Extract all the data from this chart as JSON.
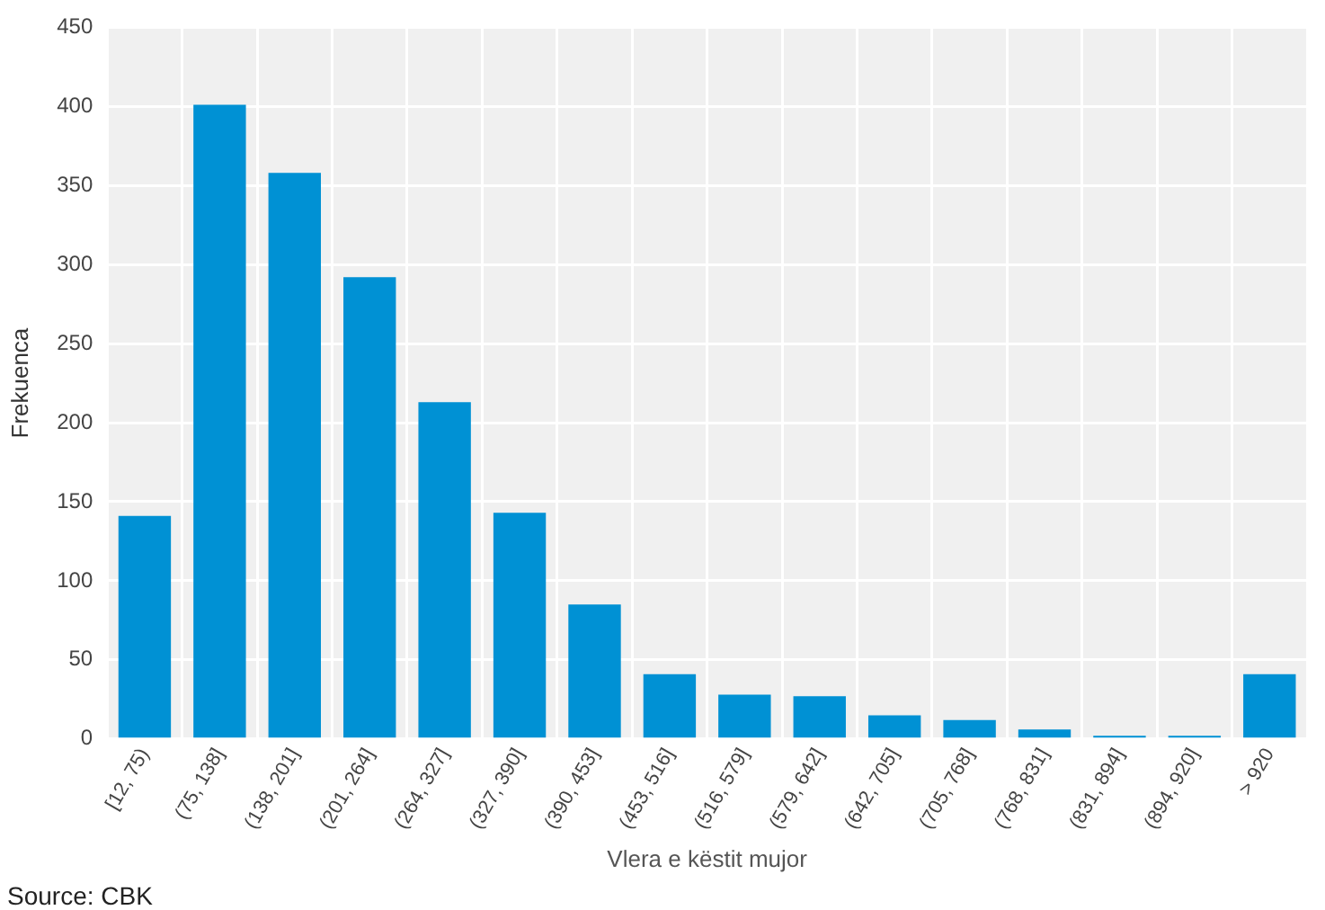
{
  "chart_data": {
    "type": "bar",
    "xlabel": "Vlera e këstit mujor",
    "ylabel": "Frekuenca",
    "categories": [
      "[12, 75)",
      "(75, 138]",
      "(138, 201]",
      "(201, 264]",
      "(264, 327]",
      "(327, 390]",
      "(390, 453]",
      "(453, 516]",
      "(516, 579]",
      "(579, 642]",
      "(642, 705]",
      "(705, 768]",
      "(768, 831]",
      "(831, 894]",
      "(894, 920]",
      "> 920"
    ],
    "values": [
      141,
      401,
      358,
      292,
      213,
      143,
      85,
      41,
      28,
      27,
      15,
      12,
      6,
      2,
      2,
      41
    ],
    "color": "#0091d4",
    "ylim": [
      0,
      450
    ],
    "yticks": [
      0,
      50,
      100,
      150,
      200,
      250,
      300,
      350,
      400,
      450
    ],
    "grid": true,
    "legend": false,
    "annotations": [
      "Source: CBK"
    ]
  }
}
